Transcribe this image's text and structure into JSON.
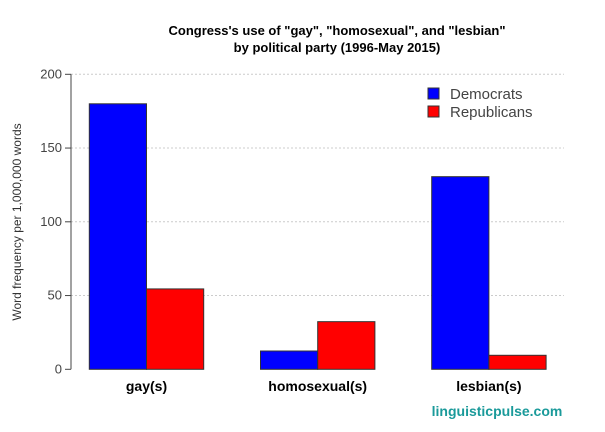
{
  "chart_data": {
    "type": "bar",
    "title": "Congress's use of \"gay\", \"homosexual\", and \"lesbian\"",
    "subtitle": "by political party (1996-May 2015)",
    "xlabel": "",
    "ylabel": "Word frequency per 1,000,000 words",
    "ylim": [
      0,
      200
    ],
    "yticks": [
      0,
      50,
      100,
      150,
      200
    ],
    "grid": "horizontal dotted",
    "legend_position": "top-right",
    "categories": [
      "gay(s)",
      "homosexual(s)",
      "lesbian(s)"
    ],
    "series": [
      {
        "name": "Democrats",
        "color": "#0000ff",
        "values": [
          180,
          12.4,
          130.6
        ]
      },
      {
        "name": "Republicans",
        "color": "#ff0000",
        "values": [
          54.5,
          32.3,
          9.5
        ]
      }
    ]
  },
  "credit": "linguisticpulse.com"
}
